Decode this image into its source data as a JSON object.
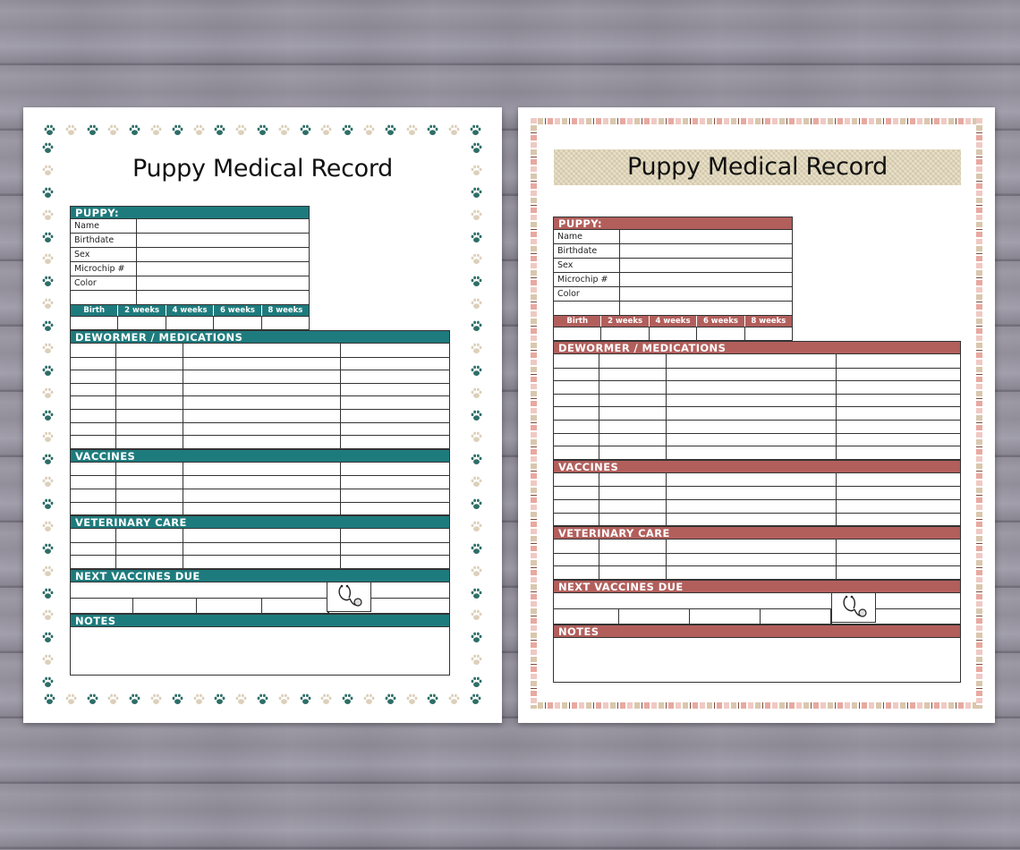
{
  "sheets": [
    {
      "theme": "teal",
      "accent": "#1e7b7d",
      "title": "Puppy Medical Record",
      "puppy_header": "PUPPY:",
      "puppy_fields": [
        "Name",
        "Birthdate",
        "Sex",
        "Microchip #",
        "Color",
        ""
      ],
      "weeks": [
        "Birth",
        "2 weeks",
        "4 weeks",
        "6 weeks",
        "8 weeks"
      ],
      "sections": {
        "dewormer": "DEWORMER / MEDICATIONS",
        "vaccines": "VACCINES",
        "vet_care": "VETERINARY CARE",
        "next_due": "NEXT VACCINES DUE",
        "notes": "NOTES"
      },
      "border": "paw-prints",
      "paw_colors": [
        "#2e6e67",
        "#dcd0bb"
      ]
    },
    {
      "theme": "rose",
      "accent": "#b25f5c",
      "title": "Puppy Medical Record",
      "puppy_header": "PUPPY:",
      "puppy_fields": [
        "Name",
        "Birthdate",
        "Sex",
        "Microchip #",
        "Color",
        ""
      ],
      "weeks": [
        "Birth",
        "2 weeks",
        "4 weeks",
        "6 weeks",
        "8 weeks"
      ],
      "sections": {
        "dewormer": "DEWORMER / MEDICATIONS",
        "vaccines": "VACCINES",
        "vet_care": "VETERINARY CARE",
        "next_due": "NEXT VACCINES DUE",
        "notes": "NOTES"
      },
      "border": "pastel-stripes",
      "title_band": "burlap"
    }
  ],
  "background": "gray-wood-planks"
}
